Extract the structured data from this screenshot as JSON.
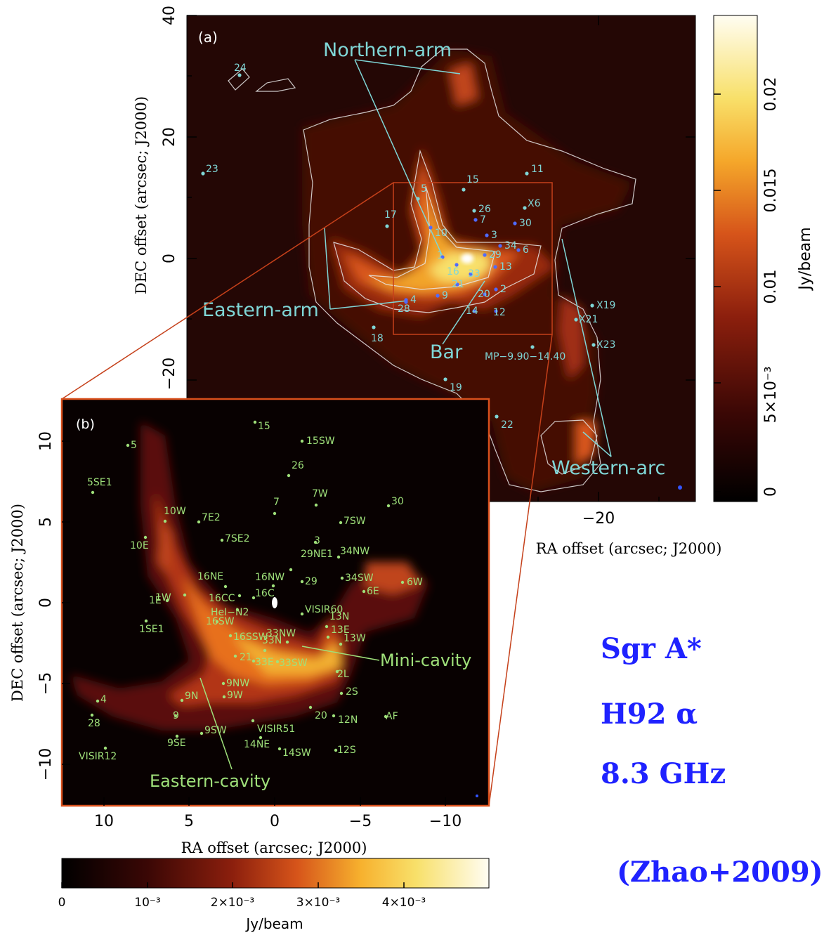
{
  "panel_a": {
    "label": "(a)",
    "x_tick_labels": [
      "−20"
    ],
    "y_tick_labels": [
      "40",
      "20",
      "0",
      "−20"
    ],
    "xlabel": "RA offset (arcsec; J2000)",
    "ylabel": "DEC offset (arcsec; J2000)",
    "colorbar": {
      "ticks": [
        "0.02",
        "0.015",
        "0.01",
        "5×10⁻³",
        "0"
      ],
      "label": "Jy/beam"
    },
    "region_labels": [
      "Northern-arm",
      "Eastern-arm",
      "Bar",
      "Western-arc"
    ],
    "sources": [
      "24",
      "23",
      "11",
      "15",
      "5",
      "26",
      "X6",
      "17",
      "7",
      "30",
      "3",
      "34",
      "6",
      "10",
      "1",
      "16",
      "29",
      "13",
      "33",
      "21",
      "9",
      "4",
      "20",
      "28",
      "2",
      "14",
      "12",
      "X19",
      "X21",
      "18",
      "X23",
      "MP−9.90−14.40",
      "19",
      "22"
    ]
  },
  "panel_b": {
    "label": "(b)",
    "x_tick_labels": [
      "10",
      "5",
      "0",
      "−5",
      "−10"
    ],
    "y_tick_labels": [
      "10",
      "5",
      "0",
      "−5",
      "−10"
    ],
    "xlabel": "RA offset (arcsec; J2000)",
    "ylabel": "DEC offset (arcsec; J2000)",
    "colorbar": {
      "ticks": [
        "0",
        "10⁻³",
        "2×10⁻³",
        "3×10⁻³",
        "4×10⁻³"
      ],
      "label": "Jy/beam"
    },
    "region_labels": [
      "Mini-cavity",
      "Eastern-cavity"
    ],
    "sources": [
      "15",
      "5",
      "15SW",
      "26",
      "5SE1",
      "10W",
      "7W",
      "30",
      "7E2",
      "7",
      "10E",
      "7SW",
      "7SE2",
      "3",
      "34NW",
      "29NE1",
      "16NE",
      "16NW",
      "34SW",
      "6W",
      "29",
      "1W",
      "16CC",
      "16C",
      "6E",
      "1E",
      "VISIR60",
      "HeI−N2",
      "13N",
      "1SE1",
      "16SW",
      "13E",
      "16SSW",
      "33NW",
      "13W",
      "33N",
      "21",
      "33E",
      "33SW",
      "2L",
      "9NW",
      "4",
      "9N",
      "9W",
      "2S",
      "28",
      "9",
      "20",
      "12N",
      "AF",
      "VISIR51",
      "9SW",
      "9SE",
      "14NE",
      "14SW",
      "12S",
      "VISIR12"
    ]
  },
  "annotations": {
    "target": "Sgr A*",
    "line": "H92 α",
    "frequency": "8.3 GHz",
    "reference": "(Zhao+2009)"
  }
}
